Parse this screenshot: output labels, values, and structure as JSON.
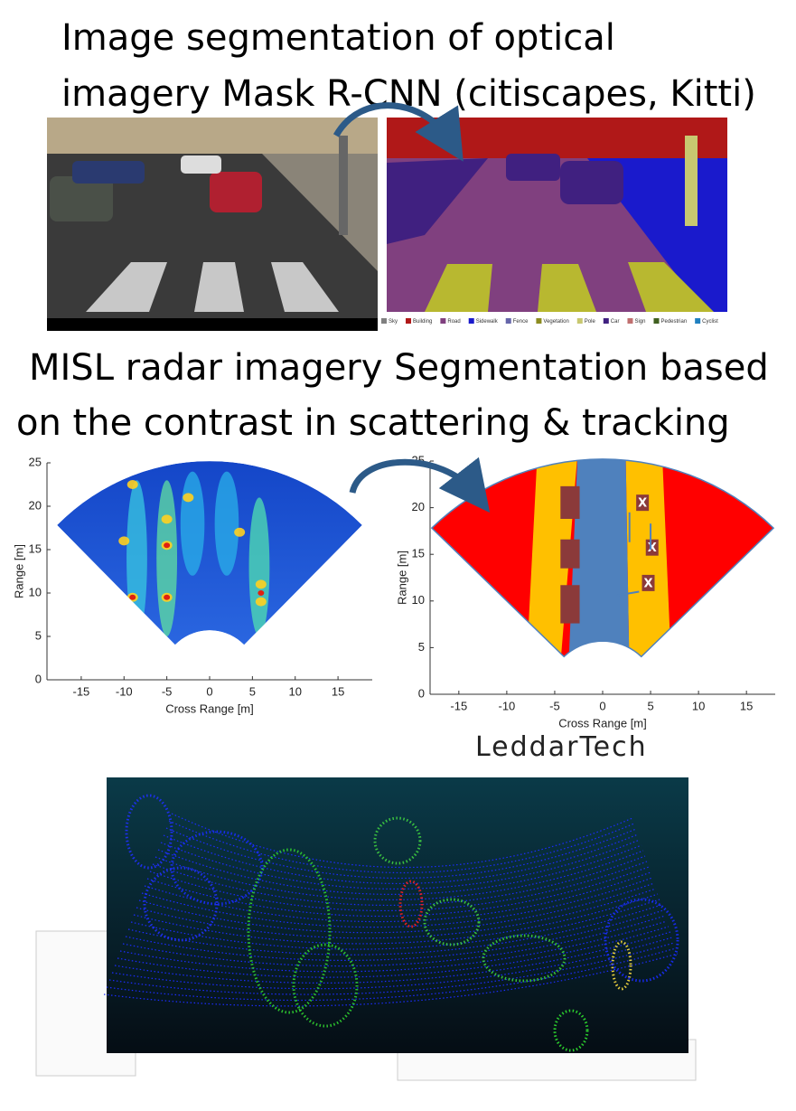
{
  "header": {
    "title_lines": [
      "Image segmentation of optical",
      "imagery Mask R-CNN (citiscapes, Kitti)"
    ]
  },
  "optical": {
    "legend": [
      {
        "label": "Sky",
        "color": "#808080"
      },
      {
        "label": "Building",
        "color": "#b01818"
      },
      {
        "label": "Road",
        "color": "#80407f"
      },
      {
        "label": "Sidewalk",
        "color": "#1a1acc"
      },
      {
        "label": "Fence",
        "color": "#6666aa"
      },
      {
        "label": "Vegetation",
        "color": "#8c8c20"
      },
      {
        "label": "Pole",
        "color": "#c8c870"
      },
      {
        "label": "Car",
        "color": "#402080"
      },
      {
        "label": "Sign",
        "color": "#c07070"
      },
      {
        "label": "Pedestrian",
        "color": "#406020"
      },
      {
        "label": "Cyclist",
        "color": "#2080c0"
      }
    ]
  },
  "radar": {
    "title_lines": [
      "MISL radar imagery Segmentation based",
      "on the contrast in scattering & tracking"
    ],
    "plots": [
      {
        "xlabel": "Cross Range [m]",
        "ylabel": "Range [m]",
        "xlim": [
          -19,
          19
        ],
        "ylim": [
          0,
          25
        ],
        "xticks": [
          -15,
          -10,
          -5,
          0,
          5,
          10,
          15
        ],
        "yticks": [
          0,
          5,
          10,
          15,
          20,
          25
        ]
      },
      {
        "xlabel": "Cross Range [m]",
        "ylabel": "Range [m]",
        "xlim": [
          -18,
          18
        ],
        "ylim": [
          0,
          25
        ],
        "xticks": [
          -15,
          -10,
          -5,
          0,
          5,
          10,
          15
        ],
        "yticks": [
          0,
          5,
          10,
          15,
          20,
          25
        ],
        "markers": [
          "X",
          "X",
          "X"
        ]
      }
    ]
  },
  "logo": "LeddarTech"
}
